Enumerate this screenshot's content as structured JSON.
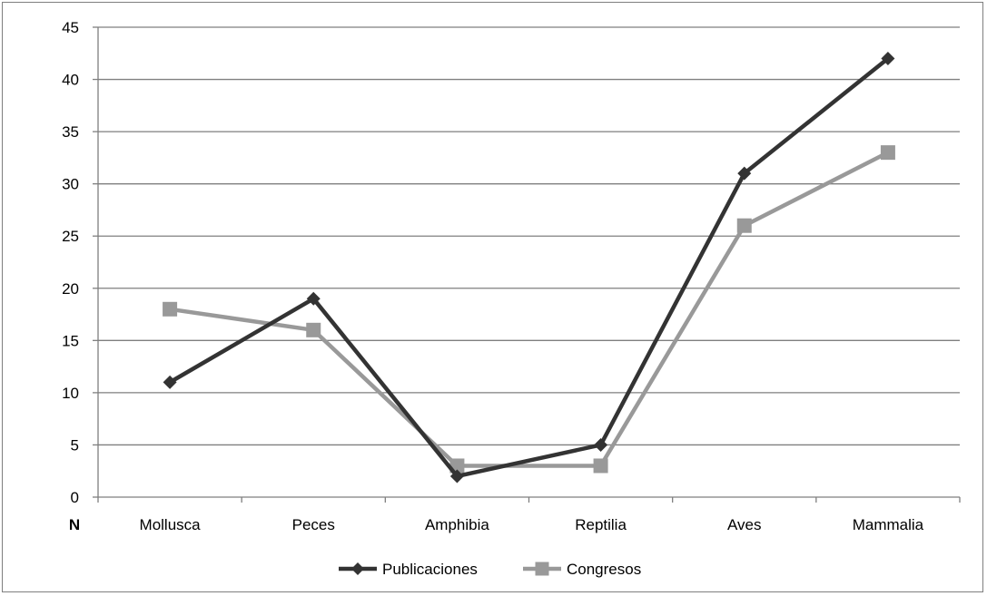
{
  "chart_data": {
    "type": "line",
    "categories": [
      "Mollusca",
      "Peces",
      "Amphibia",
      "Reptilia",
      "Aves",
      "Mammalia"
    ],
    "series": [
      {
        "name": "Publicaciones",
        "values": [
          11,
          19,
          2,
          5,
          31,
          42
        ],
        "color": "#333333",
        "marker": "diamond"
      },
      {
        "name": "Congresos",
        "values": [
          18,
          16,
          3,
          3,
          26,
          33
        ],
        "color": "#999999",
        "marker": "square"
      }
    ],
    "y_ticks": [
      0,
      5,
      10,
      15,
      20,
      25,
      30,
      35,
      40,
      45
    ],
    "ylim": [
      0,
      45
    ],
    "axis_corner_label": "N",
    "grid": true,
    "legend_position": "bottom"
  }
}
